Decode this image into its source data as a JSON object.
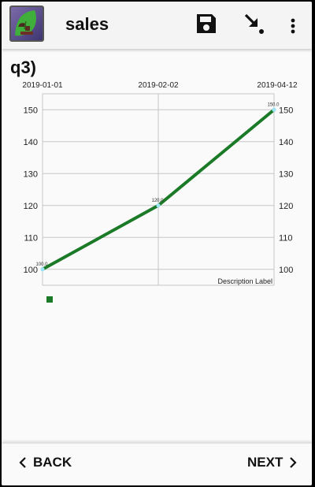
{
  "appbar": {
    "title": "sales",
    "icons": [
      "app-logo",
      "save-icon",
      "export-icon",
      "more-vert-icon"
    ]
  },
  "question": {
    "text": "q3)"
  },
  "chart_data": {
    "type": "line",
    "x": [
      "2019-01-01",
      "2019-02-02",
      "2019-04-12"
    ],
    "series": [
      {
        "values": [
          100.0,
          120.0,
          150.0
        ],
        "color": "#1b7a27"
      }
    ],
    "point_labels": [
      "100.0",
      "120.0",
      "150.0"
    ],
    "top_tick_labels": [
      "2019-01-01",
      "2019-02-02",
      "2019-04-12"
    ],
    "y_ticks": [
      100,
      110,
      120,
      130,
      140,
      150
    ],
    "y_tick_labels": [
      "100",
      "110",
      "120",
      "130",
      "140",
      "150"
    ],
    "ylim": [
      95,
      155
    ],
    "description": "Description Label",
    "grid": true,
    "legend_swatch_color": "#1b7a27",
    "point_color": "#9be3f5"
  },
  "bottom_nav": {
    "back_label": "BACK",
    "next_label": "NEXT"
  }
}
